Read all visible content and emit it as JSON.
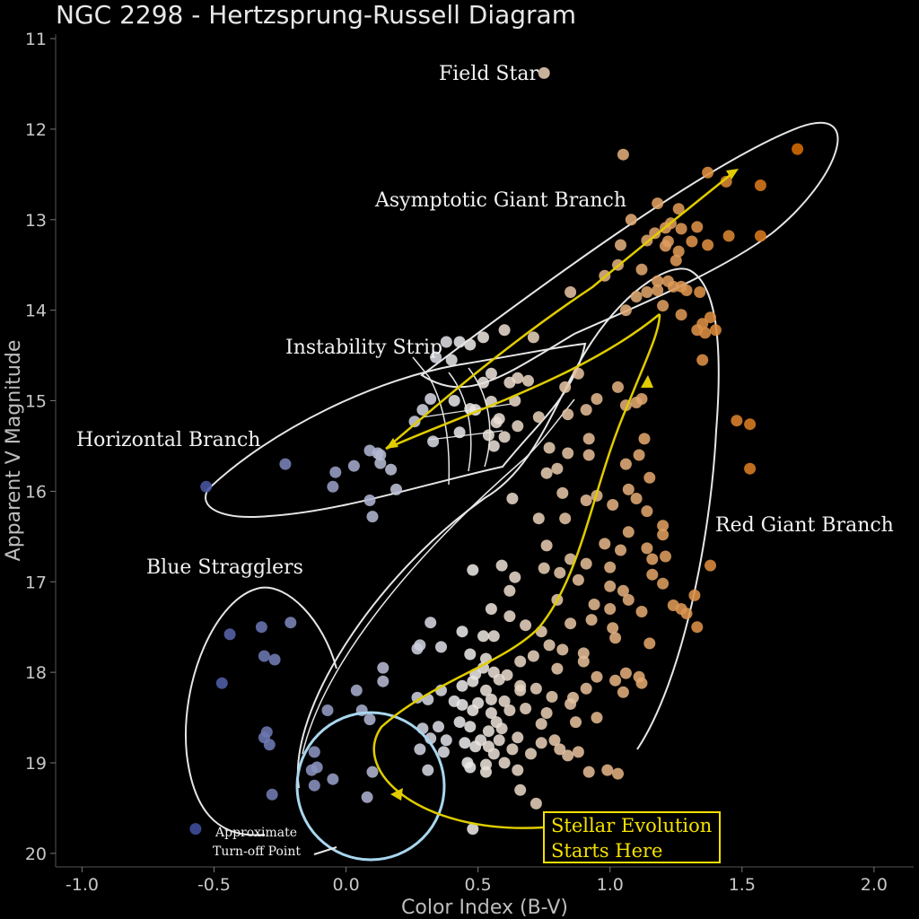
{
  "chart_data": {
    "type": "scatter",
    "title": "NGC 2298 - Hertzsprung-Russell Diagram",
    "xlabel": "Color Index (B-V)",
    "ylabel": "Apparent V Magnitude",
    "xlim": [
      -1.1,
      2.15
    ],
    "ylim": [
      20.15,
      10.95
    ],
    "y_inverted": true,
    "grid": false,
    "xticks": [
      "-1.0",
      "-0.5",
      "0.0",
      "0.5",
      "1.0",
      "1.5",
      "2.0"
    ],
    "yticks": [
      "11",
      "12",
      "13",
      "14",
      "15",
      "16",
      "17",
      "18",
      "19",
      "20"
    ],
    "color_scale": {
      "low": "#3c4b9c",
      "mid": "#e9e9e9",
      "high": "#d76a00",
      "range": [
        -0.6,
        1.72
      ]
    },
    "annotations": {
      "field_star": "Field Star",
      "agb": "Asymptotic Giant Branch",
      "instability": "Instability Strip",
      "horizontal": "Horizontal Branch",
      "blue_stragglers": "Blue Stragglers",
      "red_giant": "Red Giant Branch",
      "turnoff_1": "Approximate",
      "turnoff_2": "Turn-off Point",
      "evolution_1": "Stellar Evolution",
      "evolution_2": "Starts Here"
    },
    "series": [
      {
        "points": [
          [
            0.75,
            11.38
          ],
          [
            1.05,
            12.28
          ],
          [
            1.71,
            12.22
          ],
          [
            1.37,
            12.48
          ],
          [
            1.44,
            12.58
          ],
          [
            1.57,
            12.62
          ],
          [
            1.18,
            12.82
          ],
          [
            1.26,
            12.88
          ],
          [
            1.08,
            13.0
          ],
          [
            1.23,
            13.04
          ],
          [
            1.21,
            13.09
          ],
          [
            1.17,
            13.15
          ],
          [
            1.27,
            13.1
          ],
          [
            1.33,
            13.08
          ],
          [
            1.45,
            13.18
          ],
          [
            1.57,
            13.18
          ],
          [
            1.37,
            13.28
          ],
          [
            1.31,
            13.24
          ],
          [
            1.22,
            13.24
          ],
          [
            1.14,
            13.23
          ],
          [
            1.21,
            13.29
          ],
          [
            1.04,
            13.28
          ],
          [
            1.26,
            13.35
          ],
          [
            1.25,
            13.45
          ],
          [
            1.03,
            13.5
          ],
          [
            1.12,
            13.55
          ],
          [
            0.98,
            13.62
          ],
          [
            1.18,
            13.68
          ],
          [
            1.22,
            13.68
          ],
          [
            1.24,
            13.74
          ],
          [
            1.27,
            13.74
          ],
          [
            1.18,
            13.78
          ],
          [
            1.29,
            13.78
          ],
          [
            1.14,
            13.8
          ],
          [
            1.34,
            13.8
          ],
          [
            1.1,
            13.85
          ],
          [
            1.2,
            13.95
          ],
          [
            1.06,
            14.0
          ],
          [
            1.27,
            14.05
          ],
          [
            1.38,
            14.08
          ],
          [
            1.35,
            14.15
          ],
          [
            1.33,
            14.22
          ],
          [
            1.4,
            14.22
          ],
          [
            1.36,
            14.25
          ],
          [
            0.85,
            13.8
          ],
          [
            0.71,
            14.3
          ],
          [
            0.6,
            14.22
          ],
          [
            0.52,
            14.3
          ],
          [
            0.47,
            14.38
          ],
          [
            0.43,
            14.35
          ],
          [
            0.38,
            14.35
          ],
          [
            0.34,
            14.52
          ],
          [
            0.4,
            14.55
          ],
          [
            0.55,
            14.7
          ],
          [
            0.65,
            14.75
          ],
          [
            0.52,
            14.8
          ],
          [
            0.62,
            14.8
          ],
          [
            0.69,
            14.78
          ],
          [
            0.88,
            14.7
          ],
          [
            0.83,
            14.85
          ],
          [
            1.03,
            14.85
          ],
          [
            0.95,
            14.98
          ],
          [
            1.06,
            15.05
          ],
          [
            1.1,
            15.02
          ],
          [
            0.91,
            15.1
          ],
          [
            0.84,
            15.15
          ],
          [
            1.12,
            14.98
          ],
          [
            1.35,
            14.55
          ],
          [
            1.48,
            15.22
          ],
          [
            1.53,
            15.26
          ],
          [
            0.32,
            14.98
          ],
          [
            0.41,
            15.0
          ],
          [
            0.55,
            15.01
          ],
          [
            0.64,
            15.0
          ],
          [
            0.29,
            15.1
          ],
          [
            0.47,
            15.09
          ],
          [
            0.49,
            15.1
          ],
          [
            0.58,
            15.2
          ],
          [
            0.73,
            15.18
          ],
          [
            0.57,
            15.24
          ],
          [
            0.65,
            15.28
          ],
          [
            0.26,
            15.23
          ],
          [
            0.43,
            15.35
          ],
          [
            0.54,
            15.38
          ],
          [
            0.6,
            15.4
          ],
          [
            0.92,
            15.42
          ],
          [
            1.13,
            15.42
          ],
          [
            0.33,
            15.45
          ],
          [
            0.56,
            15.5
          ],
          [
            0.12,
            15.58
          ],
          [
            -0.23,
            15.7
          ],
          [
            -0.04,
            15.79
          ],
          [
            0.03,
            15.72
          ],
          [
            0.13,
            15.69
          ],
          [
            0.17,
            15.76
          ],
          [
            0.09,
            15.55
          ],
          [
            0.13,
            15.6
          ],
          [
            -0.05,
            15.95
          ],
          [
            0.19,
            15.98
          ],
          [
            0.09,
            16.1
          ],
          [
            0.1,
            16.28
          ],
          [
            -0.53,
            15.95
          ],
          [
            0.77,
            15.52
          ],
          [
            0.84,
            15.58
          ],
          [
            0.92,
            15.6
          ],
          [
            1.06,
            15.7
          ],
          [
            1.11,
            15.6
          ],
          [
            1.15,
            15.85
          ],
          [
            1.53,
            15.75
          ],
          [
            0.8,
            15.75
          ],
          [
            0.76,
            15.8
          ],
          [
            0.63,
            16.08
          ],
          [
            0.82,
            16.02
          ],
          [
            0.91,
            16.1
          ],
          [
            0.95,
            16.05
          ],
          [
            1.01,
            16.15
          ],
          [
            1.07,
            15.98
          ],
          [
            1.1,
            16.08
          ],
          [
            1.14,
            16.22
          ],
          [
            0.83,
            16.3
          ],
          [
            0.73,
            16.3
          ],
          [
            1.2,
            16.38
          ],
          [
            1.07,
            16.45
          ],
          [
            1.2,
            16.48
          ],
          [
            0.76,
            16.6
          ],
          [
            0.85,
            16.75
          ],
          [
            0.91,
            16.8
          ],
          [
            1.0,
            16.84
          ],
          [
            0.98,
            16.58
          ],
          [
            1.04,
            16.65
          ],
          [
            1.14,
            16.63
          ],
          [
            1.16,
            16.75
          ],
          [
            1.21,
            16.72
          ],
          [
            0.81,
            16.9
          ],
          [
            0.75,
            16.85
          ],
          [
            1.38,
            16.82
          ],
          [
            0.48,
            16.87
          ],
          [
            0.59,
            16.82
          ],
          [
            0.64,
            16.95
          ],
          [
            0.88,
            16.98
          ],
          [
            1.0,
            17.05
          ],
          [
            1.05,
            17.1
          ],
          [
            1.16,
            16.92
          ],
          [
            1.2,
            17.02
          ],
          [
            0.62,
            17.1
          ],
          [
            0.8,
            17.2
          ],
          [
            0.94,
            17.25
          ],
          [
            1.0,
            17.3
          ],
          [
            1.07,
            17.2
          ],
          [
            1.12,
            17.33
          ],
          [
            1.24,
            17.26
          ],
          [
            1.32,
            17.15
          ],
          [
            1.27,
            17.3
          ],
          [
            1.29,
            17.35
          ],
          [
            0.55,
            17.3
          ],
          [
            0.62,
            17.38
          ],
          [
            0.68,
            17.48
          ],
          [
            0.74,
            17.55
          ],
          [
            0.85,
            17.46
          ],
          [
            0.93,
            17.42
          ],
          [
            1.01,
            17.51
          ],
          [
            1.02,
            17.62
          ],
          [
            1.15,
            17.68
          ],
          [
            1.33,
            17.5
          ],
          [
            0.56,
            17.6
          ],
          [
            0.77,
            17.7
          ],
          [
            0.82,
            17.75
          ],
          [
            0.9,
            17.79
          ],
          [
            0.71,
            17.82
          ],
          [
            0.66,
            17.88
          ],
          [
            0.8,
            17.96
          ],
          [
            0.9,
            17.88
          ],
          [
            0.95,
            18.05
          ],
          [
            1.02,
            18.09
          ],
          [
            1.11,
            18.05
          ],
          [
            1.12,
            18.12
          ],
          [
            1.06,
            18.01
          ],
          [
            1.05,
            18.22
          ],
          [
            0.91,
            18.18
          ],
          [
            0.86,
            18.28
          ],
          [
            0.66,
            18.2
          ],
          [
            0.72,
            18.18
          ],
          [
            0.78,
            18.27
          ],
          [
            0.32,
            17.45
          ],
          [
            0.44,
            17.55
          ],
          [
            0.52,
            17.6
          ],
          [
            0.28,
            17.7
          ],
          [
            0.36,
            17.72
          ],
          [
            0.27,
            17.74
          ],
          [
            0.47,
            17.8
          ],
          [
            0.53,
            17.85
          ],
          [
            0.52,
            17.95
          ],
          [
            0.49,
            18.02
          ],
          [
            0.56,
            18.0
          ],
          [
            0.61,
            18.03
          ],
          [
            0.58,
            18.08
          ],
          [
            0.48,
            18.1
          ],
          [
            0.44,
            18.15
          ],
          [
            0.36,
            18.2
          ],
          [
            0.53,
            18.2
          ],
          [
            0.66,
            18.15
          ],
          [
            0.31,
            18.3
          ],
          [
            0.27,
            18.28
          ],
          [
            0.41,
            18.32
          ],
          [
            0.44,
            18.36
          ],
          [
            0.5,
            18.34
          ],
          [
            0.55,
            18.3
          ],
          [
            0.6,
            18.32
          ],
          [
            0.48,
            18.42
          ],
          [
            0.55,
            18.45
          ],
          [
            0.62,
            18.42
          ],
          [
            0.68,
            18.4
          ],
          [
            0.76,
            18.45
          ],
          [
            0.85,
            18.35
          ],
          [
            0.87,
            18.55
          ],
          [
            0.95,
            18.5
          ],
          [
            0.74,
            18.57
          ],
          [
            0.57,
            18.55
          ],
          [
            0.43,
            18.55
          ],
          [
            0.35,
            18.6
          ],
          [
            0.29,
            18.62
          ],
          [
            0.47,
            18.6
          ],
          [
            0.54,
            18.65
          ],
          [
            0.59,
            18.62
          ],
          [
            0.65,
            18.72
          ],
          [
            0.58,
            18.75
          ],
          [
            0.51,
            18.75
          ],
          [
            0.45,
            18.78
          ],
          [
            0.38,
            18.75
          ],
          [
            0.32,
            18.73
          ],
          [
            0.37,
            18.88
          ],
          [
            0.49,
            18.82
          ],
          [
            0.54,
            18.82
          ],
          [
            0.56,
            18.9
          ],
          [
            0.63,
            18.85
          ],
          [
            0.7,
            18.9
          ],
          [
            0.74,
            18.78
          ],
          [
            0.79,
            18.75
          ],
          [
            0.81,
            18.85
          ],
          [
            0.88,
            18.88
          ],
          [
            0.84,
            18.92
          ],
          [
            0.28,
            18.85
          ],
          [
            0.31,
            19.08
          ],
          [
            0.46,
            19.0
          ],
          [
            0.53,
            19.02
          ],
          [
            0.6,
            19.0
          ],
          [
            0.53,
            19.1
          ],
          [
            0.47,
            19.05
          ],
          [
            0.65,
            19.08
          ],
          [
            0.99,
            19.08
          ],
          [
            1.03,
            19.12
          ],
          [
            0.92,
            19.1
          ],
          [
            0.66,
            19.3
          ],
          [
            0.72,
            19.45
          ],
          [
            0.48,
            19.73
          ],
          [
            0.09,
            18.52
          ],
          [
            0.14,
            18.1
          ],
          [
            0.14,
            17.95
          ],
          [
            0.04,
            18.2
          ],
          [
            -0.07,
            18.42
          ],
          [
            0.06,
            18.42
          ],
          [
            -0.12,
            18.88
          ],
          [
            -0.11,
            19.05
          ],
          [
            -0.13,
            19.08
          ],
          [
            -0.12,
            19.25
          ],
          [
            -0.05,
            19.18
          ],
          [
            0.1,
            19.1
          ],
          [
            0.08,
            19.38
          ],
          [
            -0.44,
            17.58
          ],
          [
            -0.32,
            17.5
          ],
          [
            -0.21,
            17.45
          ],
          [
            -0.31,
            17.82
          ],
          [
            -0.27,
            17.86
          ],
          [
            -0.47,
            18.12
          ],
          [
            -0.3,
            18.66
          ],
          [
            -0.31,
            18.72
          ],
          [
            -0.29,
            18.8
          ],
          [
            -0.28,
            19.35
          ],
          [
            -0.57,
            19.73
          ]
        ]
      }
    ]
  }
}
